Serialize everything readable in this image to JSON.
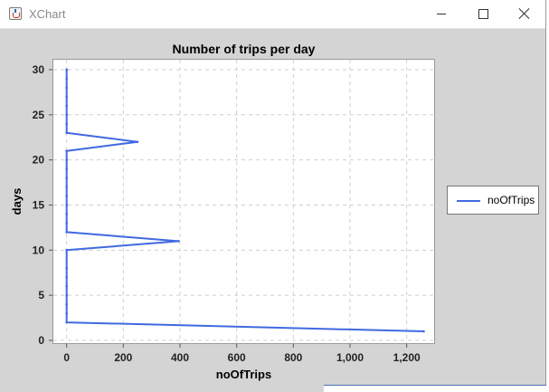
{
  "window": {
    "title": "XChart",
    "icon": "java-coffee-cup-icon",
    "controls": [
      "minimize-icon",
      "maximize-icon",
      "close-icon"
    ]
  },
  "chart_data": {
    "type": "line",
    "title": "Number of trips per day",
    "xlabel": "noOfTrips",
    "ylabel": "days",
    "xlim": [
      -50,
      1300
    ],
    "ylim": [
      -0.4,
      31.2
    ],
    "x_ticks": [
      0,
      200,
      400,
      600,
      800,
      1000,
      1200
    ],
    "x_tick_labels": [
      "0",
      "200",
      "400",
      "600",
      "800",
      "1,000",
      "1,200"
    ],
    "y_ticks": [
      0,
      5,
      10,
      15,
      20,
      25,
      30
    ],
    "y_tick_labels": [
      "0",
      "5",
      "10",
      "15",
      "20",
      "25",
      "30"
    ],
    "grid": true,
    "legend_position": "right",
    "series": [
      {
        "name": "noOfTrips",
        "color": "#4169e1",
        "x": [
          1260,
          0,
          0,
          0,
          0,
          0,
          0,
          0,
          0,
          395,
          0,
          0,
          0,
          0,
          0,
          0,
          0,
          0,
          0,
          0,
          250,
          0,
          0,
          0,
          0,
          0,
          0,
          0,
          0,
          0
        ],
        "y": [
          1,
          2,
          3,
          4,
          5,
          6,
          7,
          8,
          10,
          11,
          12,
          13,
          14,
          15,
          16,
          17,
          18,
          19,
          20,
          21,
          22,
          23,
          24,
          25,
          26,
          27,
          28,
          29,
          30,
          30
        ]
      }
    ]
  }
}
